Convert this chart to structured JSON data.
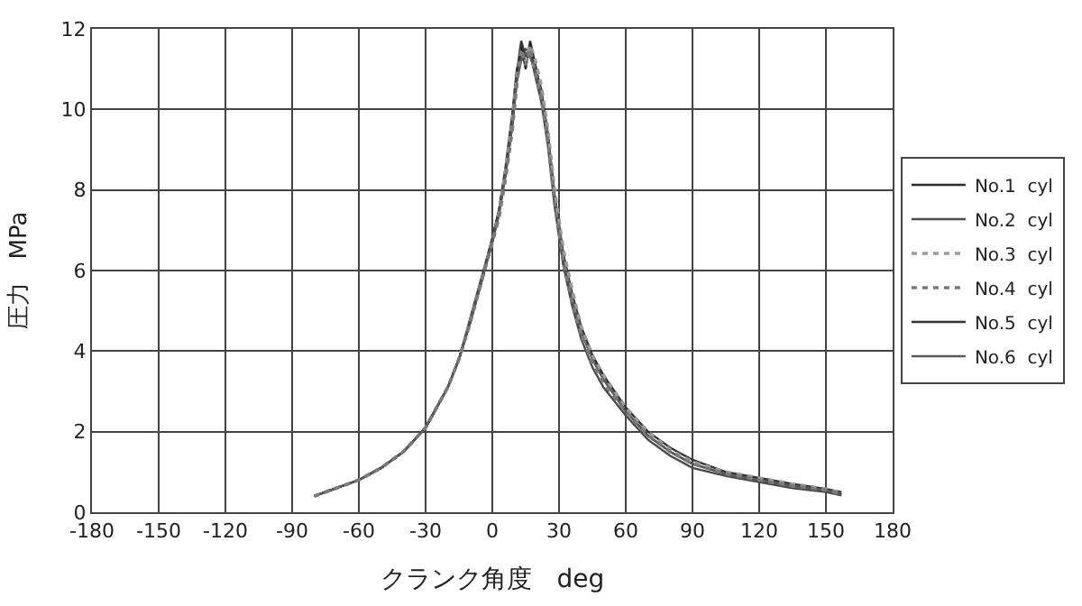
{
  "chart_data": {
    "type": "line",
    "xlabel": "クランク角度　deg",
    "ylabel": "圧力　MPa",
    "x": [
      -80,
      -70,
      -60,
      -50,
      -40,
      -30,
      -20,
      -15,
      -10,
      -5,
      0,
      3,
      6,
      9,
      11,
      13,
      15,
      17,
      19,
      22,
      25,
      28,
      32,
      36,
      40,
      45,
      50,
      60,
      70,
      80,
      90,
      105,
      120,
      135,
      150,
      157
    ],
    "series": [
      {
        "name": "No.1  cyl",
        "color": "#2a2a2a",
        "line_style": "solid",
        "values": [
          0.4,
          0.6,
          0.8,
          1.1,
          1.5,
          2.1,
          3.1,
          3.8,
          4.7,
          5.7,
          6.7,
          7.4,
          8.4,
          9.6,
          10.7,
          11.6,
          11.0,
          11.7,
          11.2,
          10.4,
          9.3,
          7.8,
          6.3,
          5.3,
          4.5,
          3.8,
          3.3,
          2.5,
          1.9,
          1.5,
          1.2,
          0.95,
          0.8,
          0.65,
          0.55,
          0.45
        ]
      },
      {
        "name": "No.2  cyl",
        "color": "#4a4a4a",
        "line_style": "solid",
        "values": [
          0.4,
          0.6,
          0.8,
          1.1,
          1.5,
          2.1,
          3.1,
          3.8,
          4.8,
          5.8,
          6.8,
          7.5,
          8.6,
          9.9,
          11.0,
          11.3,
          11.5,
          11.4,
          10.9,
          10.2,
          9.1,
          7.6,
          6.1,
          5.1,
          4.3,
          3.6,
          3.1,
          2.4,
          1.8,
          1.4,
          1.1,
          0.9,
          0.75,
          0.6,
          0.5,
          0.42
        ]
      },
      {
        "name": "No.3  cyl",
        "color": "#9a9a9a",
        "line_style": "dotted",
        "values": [
          0.4,
          0.6,
          0.8,
          1.1,
          1.5,
          2.1,
          3.1,
          3.8,
          4.7,
          5.7,
          6.7,
          7.4,
          8.5,
          9.7,
          10.8,
          11.4,
          11.2,
          11.6,
          11.3,
          10.6,
          9.5,
          8.0,
          6.5,
          5.5,
          4.6,
          3.9,
          3.4,
          2.6,
          2.0,
          1.55,
          1.25,
          1.0,
          0.85,
          0.7,
          0.58,
          0.48
        ]
      },
      {
        "name": "No.4  cyl",
        "color": "#7a7a7a",
        "line_style": "dotted",
        "values": [
          0.4,
          0.6,
          0.8,
          1.1,
          1.5,
          2.1,
          3.1,
          3.8,
          4.7,
          5.7,
          6.7,
          7.3,
          8.3,
          9.5,
          10.6,
          11.5,
          11.1,
          11.5,
          11.0,
          10.3,
          9.2,
          7.7,
          6.2,
          5.2,
          4.4,
          3.7,
          3.2,
          2.5,
          1.9,
          1.5,
          1.2,
          0.95,
          0.8,
          0.65,
          0.55,
          0.45
        ]
      },
      {
        "name": "No.5  cyl",
        "color": "#333333",
        "line_style": "solid",
        "values": [
          0.4,
          0.6,
          0.8,
          1.1,
          1.5,
          2.1,
          3.1,
          3.8,
          4.7,
          5.7,
          6.8,
          7.5,
          8.5,
          9.8,
          10.9,
          11.7,
          11.3,
          11.5,
          11.1,
          10.5,
          9.4,
          7.9,
          6.4,
          5.4,
          4.6,
          3.9,
          3.4,
          2.6,
          2.0,
          1.6,
          1.3,
          1.0,
          0.85,
          0.7,
          0.58,
          0.5
        ]
      },
      {
        "name": "No.6  cyl",
        "color": "#5a5a5a",
        "line_style": "solid",
        "values": [
          0.4,
          0.6,
          0.8,
          1.1,
          1.5,
          2.1,
          3.1,
          3.8,
          4.7,
          5.7,
          6.7,
          7.4,
          8.4,
          9.6,
          10.7,
          11.2,
          11.4,
          11.3,
          11.0,
          10.4,
          9.3,
          7.8,
          6.3,
          5.3,
          4.5,
          3.8,
          3.3,
          2.5,
          1.9,
          1.5,
          1.2,
          0.95,
          0.8,
          0.65,
          0.55,
          0.45
        ]
      }
    ],
    "xlim": [
      -180,
      180
    ],
    "xticks": [
      -180,
      -150,
      -120,
      -90,
      -60,
      -30,
      0,
      30,
      60,
      90,
      120,
      150,
      180
    ],
    "ylim": [
      0,
      12
    ],
    "yticks": [
      0,
      2,
      4,
      6,
      8,
      10,
      12
    ],
    "grid": true,
    "legend": "right",
    "marker": "none"
  }
}
